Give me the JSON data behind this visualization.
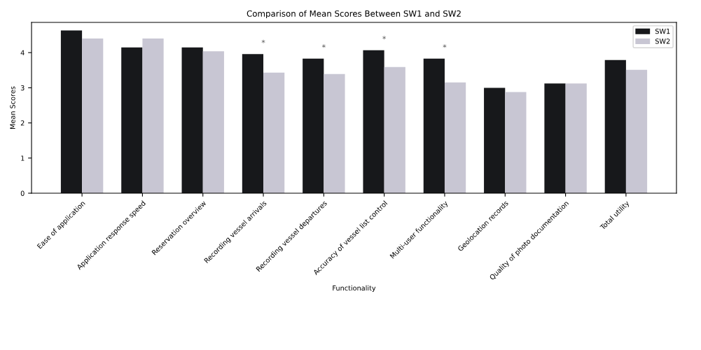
{
  "chart_data": {
    "type": "bar",
    "title": "Comparison of Mean Scores Between SW1 and SW2",
    "xlabel": "Functionality",
    "ylabel": "Mean Scores",
    "categories": [
      "Ease of application",
      "Application response speed",
      "Reservation overview",
      "Recording vessel arrivals",
      "Recording vessel departures",
      "Accuracy of vessel list control",
      "Multi-user functionality",
      "Geolocation records",
      "Quality of photo documentation",
      "Total utility"
    ],
    "series": [
      {
        "name": "SW1",
        "color": "#17181b",
        "values": [
          4.63,
          4.15,
          4.15,
          3.96,
          3.83,
          4.07,
          3.83,
          3.0,
          3.12,
          3.79
        ]
      },
      {
        "name": "SW2",
        "color": "#c8c6d3",
        "values": [
          4.4,
          4.4,
          4.04,
          3.43,
          3.39,
          3.59,
          3.15,
          2.88,
          3.12,
          3.51
        ]
      }
    ],
    "annotations": [
      {
        "text": "*",
        "x": "Recording vessel arrivals",
        "y": 3.96
      },
      {
        "text": "*",
        "x": "Recording vessel departures",
        "y": 3.83
      },
      {
        "text": "*",
        "x": "Accuracy of vessel list control",
        "y": 4.07
      },
      {
        "text": "*",
        "x": "Multi-user functionality",
        "y": 3.83
      }
    ],
    "ylim": [
      0,
      4.86
    ],
    "yticks": [
      0,
      1,
      2,
      3,
      4
    ],
    "grid": false,
    "legend": "top right"
  }
}
